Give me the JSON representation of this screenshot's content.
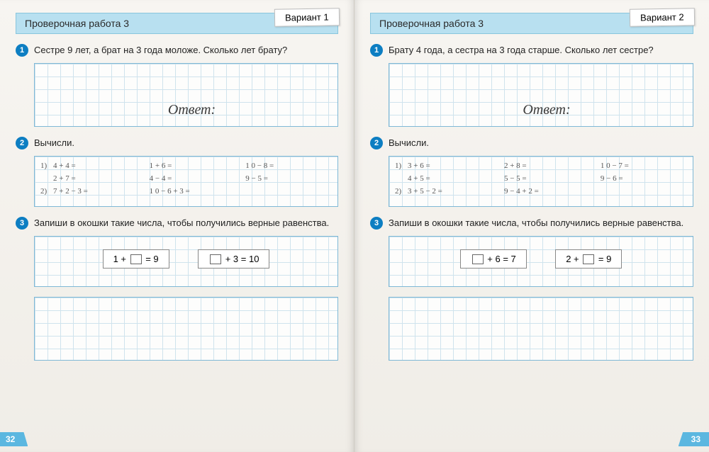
{
  "left": {
    "header": "Проверочная работа 3",
    "variant": "Вариант 1",
    "page_num": "32",
    "answer_word": "Ответ:",
    "task1": {
      "num": "1",
      "text": "Сестре 9 лет, а брат на 3 года моложе. Сколько лет брату?"
    },
    "task2": {
      "num": "2",
      "text": "Вычисли.",
      "rows": [
        [
          {
            "p": "1)",
            "e": "4 + 4 ="
          },
          {
            "p": "",
            "e": "1 + 6 ="
          },
          {
            "p": "",
            "e": "1 0 − 8 ="
          }
        ],
        [
          {
            "p": "",
            "e": "2 + 7 ="
          },
          {
            "p": "",
            "e": "4 − 4 ="
          },
          {
            "p": "",
            "e": "9 − 5 ="
          }
        ],
        [
          {
            "p": "2)",
            "e": "7 + 2 − 3 ="
          },
          {
            "p": "",
            "e": "1 0 − 6 + 3 ="
          },
          {
            "p": "",
            "e": ""
          }
        ]
      ]
    },
    "task3": {
      "num": "3",
      "text": "Запиши в окошки такие числа, чтобы получились верные равенства.",
      "eq1_pre": "1 + ",
      "eq1_post": " = 9",
      "eq2_pre": "",
      "eq2_mid": " + 3 = 10"
    }
  },
  "right": {
    "header": "Проверочная работа 3",
    "variant": "Вариант 2",
    "page_num": "33",
    "answer_word": "Ответ:",
    "task1": {
      "num": "1",
      "text": "Брату 4 года, а сестра на 3 года старше. Сколько лет сестре?"
    },
    "task2": {
      "num": "2",
      "text": "Вычисли.",
      "rows": [
        [
          {
            "p": "1)",
            "e": "3 + 6 ="
          },
          {
            "p": "",
            "e": "2 + 8 ="
          },
          {
            "p": "",
            "e": "1 0 − 7 ="
          }
        ],
        [
          {
            "p": "",
            "e": "4 + 5 ="
          },
          {
            "p": "",
            "e": "5 − 5 ="
          },
          {
            "p": "",
            "e": "9 − 6 ="
          }
        ],
        [
          {
            "p": "2)",
            "e": "3 + 5 − 2 ="
          },
          {
            "p": "",
            "e": "9 − 4 + 2 ="
          },
          {
            "p": "",
            "e": ""
          }
        ]
      ]
    },
    "task3": {
      "num": "3",
      "text": "Запиши в окошки такие числа, чтобы получились верные равенства.",
      "eq1_pre": "",
      "eq1_post": " + 6 = 7",
      "eq2_pre": "2 + ",
      "eq2_mid": " = 9"
    }
  }
}
